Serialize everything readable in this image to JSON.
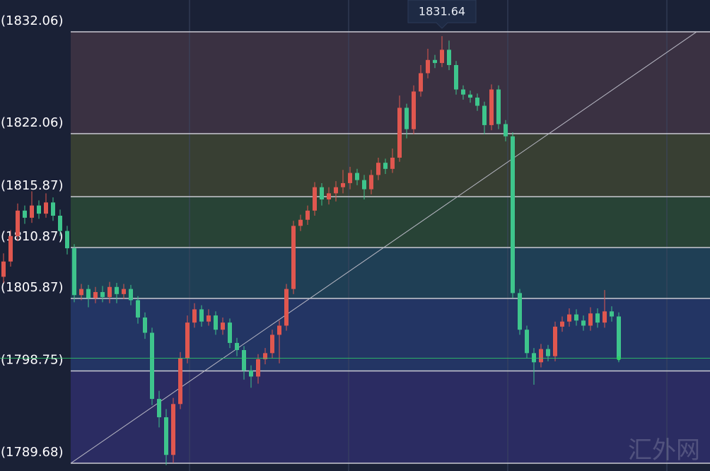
{
  "chart_data": {
    "type": "candlestick",
    "levels": [
      {
        "value": 1832.06,
        "label": "(1832.06)"
      },
      {
        "value": 1822.06,
        "label": "(1822.06)"
      },
      {
        "value": 1815.87,
        "label": "(1815.87)"
      },
      {
        "value": 1810.87,
        "label": "(1810.87)"
      },
      {
        "value": 1805.87,
        "label": "(1805.87)"
      },
      {
        "value": 1798.75,
        "label": "(1798.75)"
      },
      {
        "value": 1789.68,
        "label": "(1789.68)"
      }
    ],
    "band_colors": [
      "#3a3142",
      "#383f33",
      "#284336",
      "#1f3f55",
      "#233564",
      "#2b2c62"
    ],
    "ylim": [
      1788.92,
      1835.19
    ],
    "tooltip_value": 1831.64,
    "up_color": "#e0574f",
    "down_color": "#3ec58c",
    "last_price_color": "#2fd06a",
    "watermark": "汇外网",
    "open": [
      1808.0,
      1809.5,
      1812.0,
      1814.5,
      1813.8,
      1815.0,
      1814.2,
      1815.3,
      1814.0,
      1812.5,
      1810.8,
      1806.2,
      1806.8,
      1805.9,
      1806.5,
      1806.0,
      1807.0,
      1806.3,
      1806.8,
      1805.7,
      1804.0,
      1802.5,
      1796.0,
      1794.2,
      1790.5,
      1795.5,
      1800.0,
      1803.5,
      1804.8,
      1803.6,
      1804.2,
      1802.8,
      1803.5,
      1801.5,
      1800.8,
      1798.8,
      1798.2,
      1799.9,
      1800.5,
      1802.3,
      1803.2,
      1806.8,
      1813.0,
      1813.6,
      1814.5,
      1816.8,
      1815.6,
      1816.2,
      1816.8,
      1817.2,
      1818.2,
      1817.5,
      1816.6,
      1818.0,
      1819.2,
      1818.6,
      1819.7,
      1824.6,
      1822.5,
      1826.2,
      1828.0,
      1829.3,
      1829.0,
      1830.3,
      1828.8,
      1826.4,
      1825.9,
      1825.6,
      1824.8,
      1822.9,
      1826.4,
      1823.0,
      1821.8,
      1806.4,
      1802.8,
      1800.5,
      1799.6,
      1800.9,
      1800.2,
      1803.1,
      1803.6,
      1804.3,
      1803.7,
      1803.2,
      1804.4,
      1803.5,
      1804.6,
      1804.1
    ],
    "high": [
      1810.3,
      1812.6,
      1815.2,
      1815.0,
      1816.4,
      1815.5,
      1816.2,
      1815.8,
      1814.6,
      1813.0,
      1811.2,
      1807.3,
      1807.2,
      1807.0,
      1807.1,
      1807.5,
      1807.4,
      1807.3,
      1807.2,
      1806.1,
      1804.5,
      1803.0,
      1796.8,
      1795.0,
      1796.1,
      1800.6,
      1804.2,
      1805.4,
      1805.2,
      1804.8,
      1804.6,
      1804.0,
      1803.9,
      1802.0,
      1801.2,
      1799.3,
      1800.4,
      1801.0,
      1802.8,
      1803.7,
      1807.3,
      1813.5,
      1814.1,
      1815.0,
      1817.3,
      1817.2,
      1816.8,
      1817.4,
      1818.5,
      1818.8,
      1818.6,
      1818.0,
      1818.5,
      1819.7,
      1819.6,
      1820.6,
      1825.8,
      1825.0,
      1826.8,
      1828.8,
      1830.4,
      1829.8,
      1831.64,
      1831.2,
      1829.2,
      1826.8,
      1826.3,
      1826.0,
      1825.2,
      1826.9,
      1826.8,
      1823.4,
      1822.2,
      1806.8,
      1803.2,
      1801.0,
      1801.4,
      1801.3,
      1803.6,
      1804.1,
      1804.9,
      1804.8,
      1804.2,
      1805.0,
      1804.9,
      1806.7,
      1805.1,
      1804.5
    ],
    "low": [
      1807.4,
      1809.0,
      1811.5,
      1813.2,
      1813.3,
      1813.7,
      1813.8,
      1813.5,
      1812.0,
      1810.2,
      1805.5,
      1805.7,
      1805.0,
      1805.4,
      1805.5,
      1805.4,
      1805.4,
      1805.8,
      1805.2,
      1803.4,
      1801.9,
      1795.4,
      1793.2,
      1789.5,
      1789.7,
      1795.0,
      1799.5,
      1803.0,
      1803.1,
      1803.2,
      1802.3,
      1802.3,
      1801.0,
      1800.2,
      1797.9,
      1797.1,
      1797.5,
      1799.4,
      1800.0,
      1799.5,
      1802.7,
      1806.3,
      1812.5,
      1813.1,
      1814.0,
      1815.0,
      1815.1,
      1815.4,
      1816.2,
      1816.6,
      1817.0,
      1815.6,
      1816.1,
      1817.5,
      1818.1,
      1818.2,
      1819.3,
      1821.6,
      1822.0,
      1825.7,
      1827.5,
      1828.5,
      1828.6,
      1828.3,
      1825.9,
      1825.4,
      1825.1,
      1824.3,
      1822.0,
      1822.4,
      1822.5,
      1821.3,
      1805.9,
      1802.3,
      1800.0,
      1797.4,
      1799.1,
      1799.7,
      1799.7,
      1802.6,
      1803.1,
      1803.2,
      1802.7,
      1802.7,
      1803.0,
      1803.0,
      1803.6,
      1799.6
    ],
    "close": [
      1809.5,
      1812.0,
      1814.5,
      1813.8,
      1815.0,
      1814.2,
      1815.3,
      1814.0,
      1812.5,
      1810.8,
      1806.2,
      1806.8,
      1805.9,
      1806.5,
      1806.0,
      1807.0,
      1806.3,
      1806.8,
      1805.7,
      1804.0,
      1802.5,
      1796.0,
      1794.2,
      1790.5,
      1795.5,
      1800.0,
      1803.5,
      1804.8,
      1803.6,
      1804.2,
      1802.8,
      1803.5,
      1801.5,
      1800.8,
      1798.8,
      1798.2,
      1799.9,
      1800.5,
      1802.3,
      1803.2,
      1806.8,
      1813.0,
      1813.6,
      1814.5,
      1816.8,
      1815.6,
      1816.2,
      1816.8,
      1817.2,
      1818.2,
      1817.5,
      1816.6,
      1818.0,
      1819.2,
      1818.6,
      1819.7,
      1824.6,
      1822.5,
      1826.2,
      1828.0,
      1829.3,
      1829.0,
      1830.3,
      1828.8,
      1826.4,
      1825.9,
      1825.6,
      1824.8,
      1822.9,
      1826.4,
      1823.0,
      1821.8,
      1806.4,
      1802.8,
      1800.5,
      1799.6,
      1800.9,
      1800.2,
      1803.1,
      1803.6,
      1804.3,
      1803.7,
      1803.2,
      1804.4,
      1803.5,
      1804.6,
      1804.1,
      1800.0
    ]
  }
}
